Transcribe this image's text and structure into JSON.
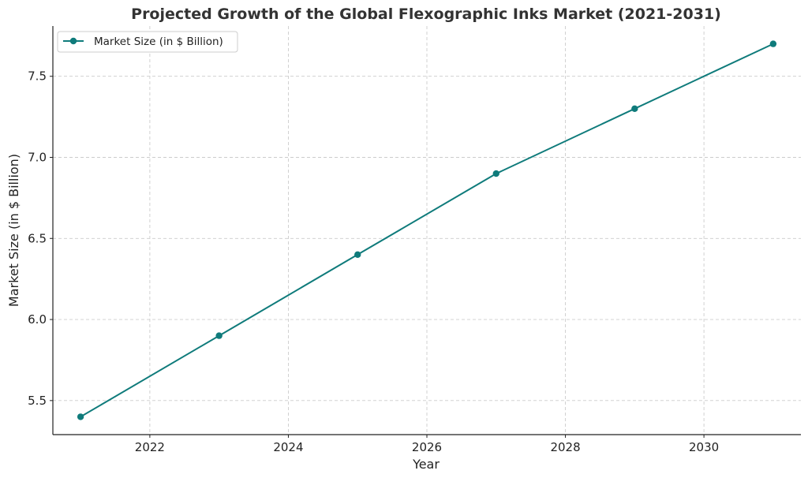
{
  "chart_data": {
    "type": "line",
    "title": "Projected Growth of the Global Flexographic Inks Market (2021-2031)",
    "xlabel": "Year",
    "ylabel": "Market Size (in $ Billion)",
    "x": [
      2021,
      2023,
      2025,
      2027,
      2029,
      2031
    ],
    "series": [
      {
        "name": "Market Size (in $ Billion)",
        "values": [
          5.4,
          5.9,
          6.4,
          6.9,
          7.3,
          7.7
        ],
        "color": "#0f7b7b",
        "marker": "circle"
      }
    ],
    "xticks": [
      2022,
      2024,
      2026,
      2028,
      2030
    ],
    "yticks": [
      5.5,
      6.0,
      6.5,
      7.0,
      7.5
    ],
    "ytick_labels": [
      "5.5",
      "6.0",
      "6.5",
      "7.0",
      "7.5"
    ],
    "xlim": [
      2020.6,
      2031.4
    ],
    "ylim": [
      5.29,
      7.81
    ],
    "grid": true,
    "legend_position": "top-left"
  }
}
